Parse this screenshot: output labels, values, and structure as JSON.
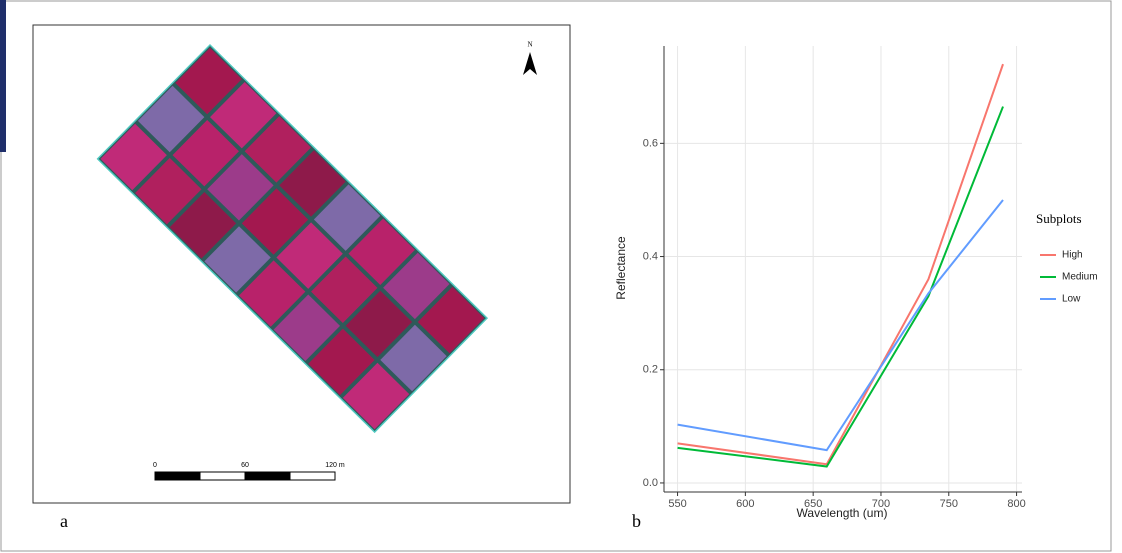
{
  "panel_a": {
    "label": "a",
    "north": "N",
    "scale_labels": [
      "0",
      "60",
      "120 m"
    ]
  },
  "panel_b_label": "b",
  "chart_data": {
    "type": "line",
    "x_label": "Wavelength (um)",
    "y_label": "Reflectance",
    "x": [
      550,
      660,
      735,
      790
    ],
    "series": [
      {
        "name": "High",
        "color": "#f8766d",
        "values": [
          0.07,
          0.033,
          0.36,
          0.74
        ]
      },
      {
        "name": "Medium",
        "color": "#00ba38",
        "values": [
          0.062,
          0.029,
          0.33,
          0.665
        ]
      },
      {
        "name": "Low",
        "color": "#619cff",
        "values": [
          0.103,
          0.058,
          0.335,
          0.5
        ]
      }
    ],
    "xlim": [
      540,
      804
    ],
    "xticks": [
      550,
      600,
      650,
      700,
      750,
      800
    ],
    "ylim": [
      -0.016,
      0.772
    ],
    "yticks": [
      {
        "value": 0,
        "label": "0.0"
      },
      0.2,
      0.4,
      0.6
    ],
    "grid": true,
    "legend_title": "Subplots",
    "legend": "right"
  }
}
